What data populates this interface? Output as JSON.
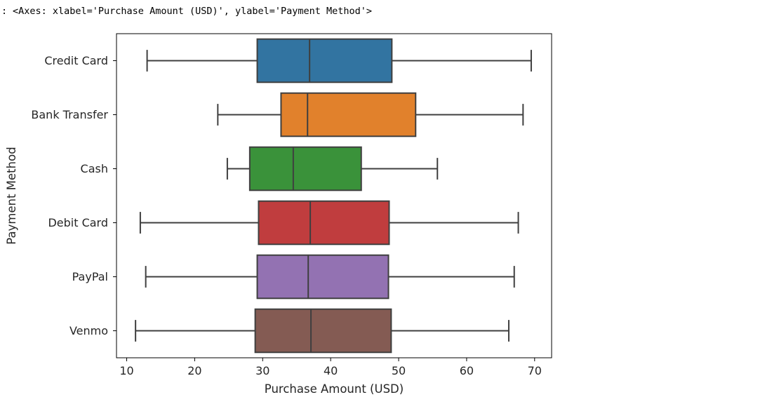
{
  "output": {
    "prompt": ":",
    "repr_text": "<Axes: xlabel='Purchase Amount (USD)', ylabel='Payment Method'>"
  },
  "chart_data": {
    "type": "boxplot",
    "orientation": "horizontal",
    "xlabel": "Purchase Amount (USD)",
    "ylabel": "Payment Method",
    "xlim": [
      8.5,
      72.5
    ],
    "x_ticks": [
      10,
      20,
      30,
      40,
      50,
      60,
      70
    ],
    "grid": false,
    "categories": [
      "Credit Card",
      "Bank Transfer",
      "Cash",
      "Debit Card",
      "PayPal",
      "Venmo"
    ],
    "boxes": [
      {
        "category": "Credit Card",
        "whisker_low": 13.0,
        "q1": 29.2,
        "median": 36.9,
        "q3": 49.0,
        "whisker_high": 69.5,
        "color": "#3274a1"
      },
      {
        "category": "Bank Transfer",
        "whisker_low": 23.4,
        "q1": 32.7,
        "median": 36.6,
        "q3": 52.5,
        "whisker_high": 68.3,
        "color": "#e1812c"
      },
      {
        "category": "Cash",
        "whisker_low": 24.8,
        "q1": 28.1,
        "median": 34.5,
        "q3": 44.5,
        "whisker_high": 55.7,
        "color": "#3a923a"
      },
      {
        "category": "Debit Card",
        "whisker_low": 12.0,
        "q1": 29.4,
        "median": 37.0,
        "q3": 48.6,
        "whisker_high": 67.6,
        "color": "#c03d3e"
      },
      {
        "category": "PayPal",
        "whisker_low": 12.8,
        "q1": 29.2,
        "median": 36.7,
        "q3": 48.5,
        "whisker_high": 67.0,
        "color": "#9372b2"
      },
      {
        "category": "Venmo",
        "whisker_low": 11.3,
        "q1": 28.9,
        "median": 37.1,
        "q3": 48.9,
        "whisker_high": 66.2,
        "color": "#845b53"
      }
    ]
  }
}
